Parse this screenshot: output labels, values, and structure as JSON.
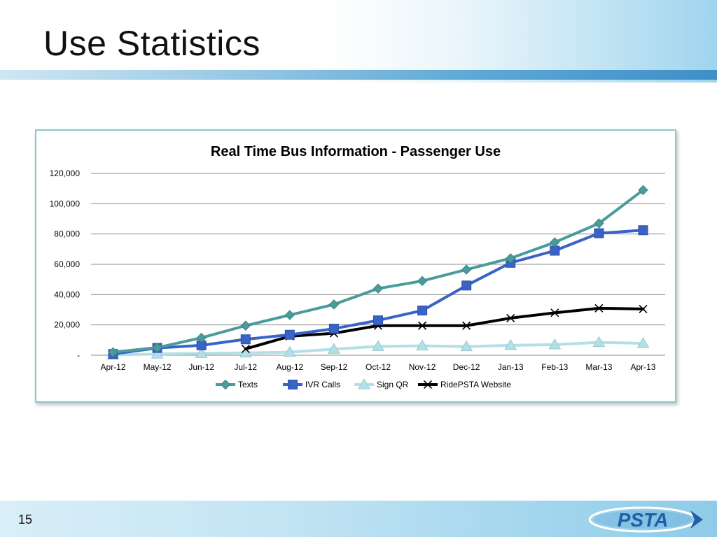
{
  "slide": {
    "title": "Use Statistics",
    "page_number": "15",
    "logo_text": "PSTA"
  },
  "chart_data": {
    "type": "line",
    "title": "Real Time Bus Information - Passenger Use",
    "xlabel": "",
    "ylabel": "",
    "categories": [
      "Apr-12",
      "May-12",
      "Jun-12",
      "Jul-12",
      "Aug-12",
      "Sep-12",
      "Oct-12",
      "Nov-12",
      "Dec-12",
      "Jan-13",
      "Feb-13",
      "Mar-13",
      "Apr-13"
    ],
    "ylim": [
      0,
      120000
    ],
    "yticks": [
      0,
      20000,
      40000,
      60000,
      80000,
      100000,
      120000
    ],
    "ytick_labels": [
      "-",
      "20,000",
      "40,000",
      "60,000",
      "80,000",
      "100,000",
      "120,000"
    ],
    "grid": true,
    "legend_position": "bottom",
    "series": [
      {
        "name": "Texts",
        "color": "#4a9c9c",
        "marker": "diamond",
        "values": [
          2000,
          5000,
          11500,
          19500,
          26500,
          33500,
          44000,
          49000,
          56500,
          64000,
          74500,
          87000,
          109000
        ]
      },
      {
        "name": "IVR Calls",
        "color": "#3a63c8",
        "marker": "square",
        "values": [
          800,
          4800,
          6500,
          10500,
          13500,
          17500,
          23000,
          29500,
          46000,
          61000,
          69000,
          80500,
          82500
        ]
      },
      {
        "name": "Sign QR",
        "color": "#b3dfe6",
        "marker": "triangle",
        "values": [
          200,
          800,
          1200,
          1500,
          2000,
          4000,
          5800,
          6200,
          5700,
          6500,
          7000,
          8500,
          7800
        ]
      },
      {
        "name": "RidePSTA Website",
        "color": "#000000",
        "marker": "x",
        "values": [
          null,
          null,
          null,
          4200,
          12500,
          14500,
          19500,
          19500,
          19500,
          24500,
          28000,
          31000,
          30500
        ]
      }
    ]
  }
}
